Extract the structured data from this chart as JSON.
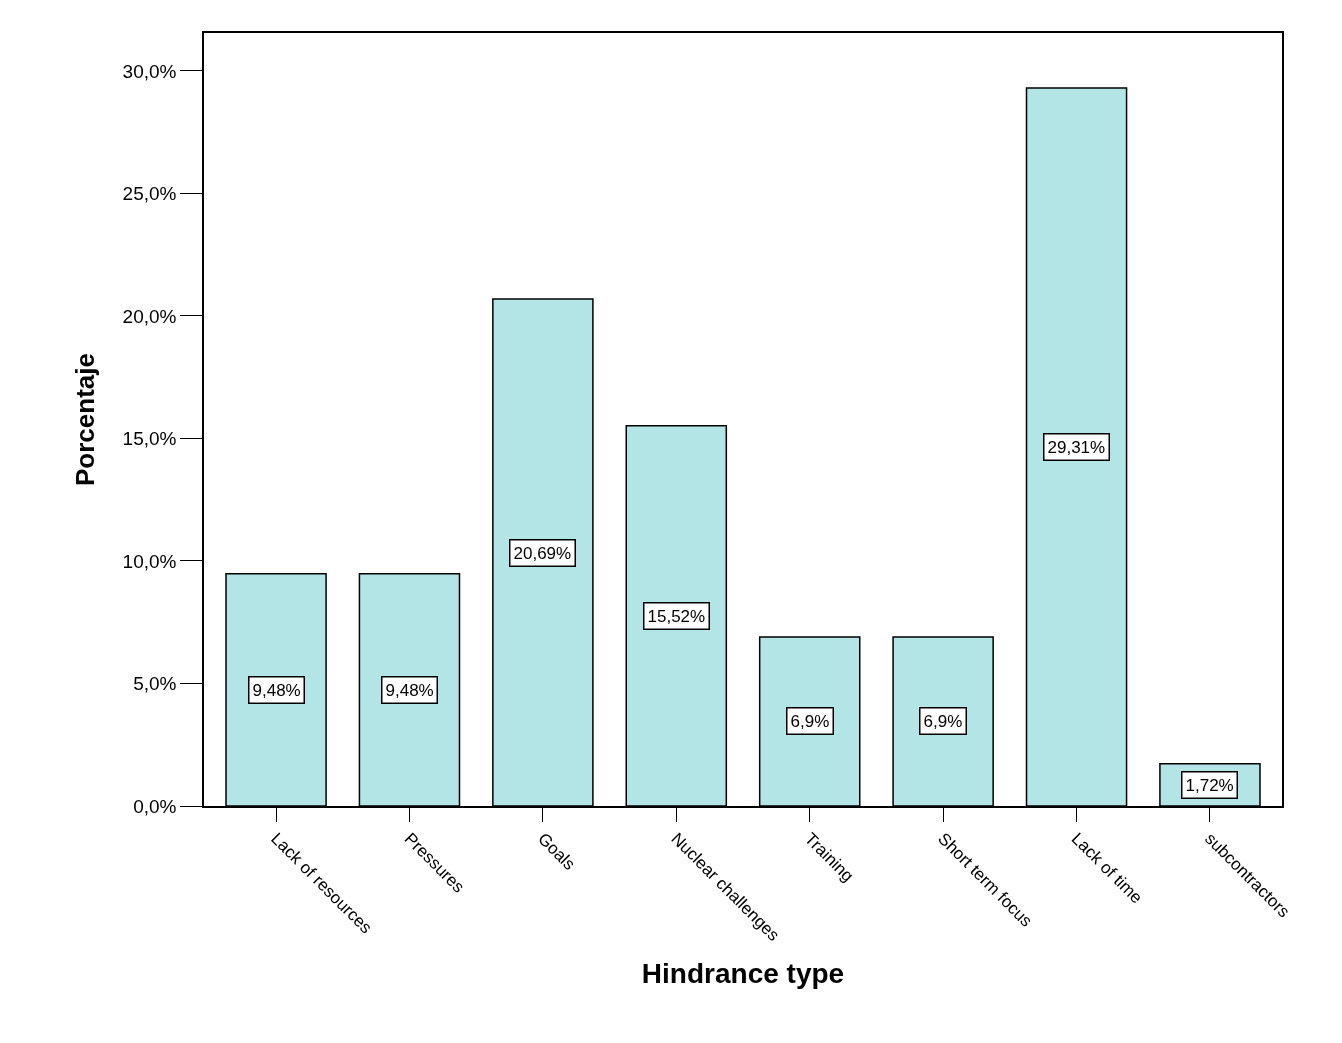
{
  "chart_data": {
    "type": "bar",
    "xlabel": "Hindrance type",
    "ylabel": "Porcentaje",
    "categories": [
      "Lack of resources",
      "Pressures",
      "Goals",
      "Nuclear challenges",
      "Training",
      "Short term focus",
      "Lack of time",
      "subcontractors"
    ],
    "values": [
      9.48,
      9.48,
      20.69,
      15.52,
      6.9,
      6.9,
      29.31,
      1.72
    ],
    "value_labels": [
      "9,48%",
      "9,48%",
      "20,69%",
      "15,52%",
      "6,9%",
      "6,9%",
      "29,31%",
      "1,72%"
    ],
    "color": "#b3e5e6",
    "ylim": [
      0,
      31.55
    ],
    "yticks": [
      {
        "value": 0,
        "label": "0,0%"
      },
      {
        "value": 5,
        "label": "5,0%"
      },
      {
        "value": 10,
        "label": "10,0%"
      },
      {
        "value": 15,
        "label": "15,0%"
      },
      {
        "value": 20,
        "label": "20,0%"
      },
      {
        "value": 25,
        "label": "25,0%"
      },
      {
        "value": 30,
        "label": "30,0%"
      }
    ],
    "legend": false
  }
}
